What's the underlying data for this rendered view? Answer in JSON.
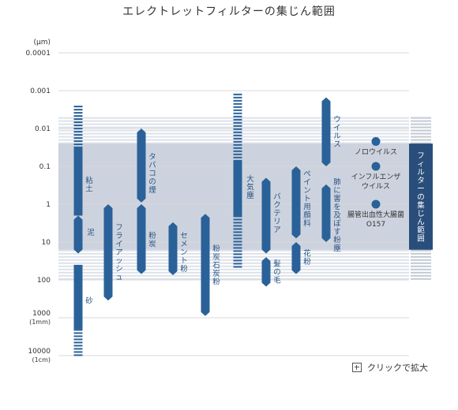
{
  "title": "エレクトレットフィルターの集じん範囲",
  "zoom_label": "クリックで拡大",
  "colors": {
    "bar": "#2a6199",
    "band": "#cdd3de",
    "stripe": "#dde2ea",
    "grid": "#d8d8d8",
    "filter_box": "#2a4e7c",
    "text_blue": "#2a5585"
  },
  "chart_data": {
    "type": "range-bar",
    "y_scale": "log",
    "y_unit": "(μm)",
    "y_range": [
      0.0001,
      10000
    ],
    "y_reversed": true,
    "y_ticks": [
      {
        "value": 0.0001,
        "label": "0.0001"
      },
      {
        "value": 0.001,
        "label": "0.001"
      },
      {
        "value": 0.01,
        "label": "0.01"
      },
      {
        "value": 0.1,
        "label": "0.1"
      },
      {
        "value": 1,
        "label": "1"
      },
      {
        "value": 10,
        "label": "10"
      },
      {
        "value": 100,
        "label": "100"
      },
      {
        "value": 1000,
        "label": "1000",
        "sublabel": "(1mm)"
      },
      {
        "value": 10000,
        "label": "10000",
        "sublabel": "(1cm)"
      }
    ],
    "filter_range": {
      "label": "フィルターの集じん範囲",
      "solid": [
        0.025,
        16
      ],
      "striped": [
        0.005,
        100
      ]
    },
    "bars": [
      {
        "name": "粘土",
        "from": 0.03,
        "to": 2,
        "stripe_from": 0.0025,
        "stripe_to": 0.03,
        "label_at": 0.3
      },
      {
        "name": "泥",
        "from": 2,
        "to": 20,
        "label_at": 5.5
      },
      {
        "name": "砂",
        "from": 40,
        "to": 2000,
        "stripe_to": 10000,
        "label_at": 350
      },
      {
        "name": "フライアッシュ",
        "from": 1,
        "to": 350,
        "label_at": 18
      },
      {
        "name": "タバコの煙",
        "from": 0.01,
        "to": 0.9,
        "label_at": 0.15
      },
      {
        "name": "粉炭",
        "from": 1,
        "to": 70,
        "label_at": 8.5
      },
      {
        "name": "セメント粉",
        "from": 3,
        "to": 75,
        "label_at": 18
      },
      {
        "name": "粉炭石炭粉",
        "from": 1.8,
        "to": 900,
        "label_at": 40
      },
      {
        "name": "大気塵",
        "from": 0.07,
        "to": 2,
        "stripe_from": 0.0012,
        "stripe_to": 0.07,
        "stripe_to2": 50,
        "label_at": 0.35
      },
      {
        "name": "バクテリア",
        "from": 0.2,
        "to": 20,
        "label_at": 1.7
      },
      {
        "name": "髪の毛",
        "from": 25,
        "to": 150,
        "label_at": 60
      },
      {
        "name": "ペイント用顔料",
        "from": 0.1,
        "to": 8,
        "label_at": 0.7
      },
      {
        "name": "花粉",
        "from": 10,
        "to": 70,
        "label_at": 25
      },
      {
        "name": "ウイルス",
        "from": 0.0015,
        "to": 0.1,
        "label_at": 0.012
      },
      {
        "name": "肺に害を及ぼす粉塵",
        "from": 0.3,
        "to": 10,
        "label_at": 1.9
      }
    ],
    "points": [
      {
        "name": "ノロウイルス",
        "value": 0.022
      },
      {
        "name": "インフルエンザ\nウイルス",
        "value": 0.1
      },
      {
        "name": "腸管出血性大腸菌\nO157",
        "value": 1
      }
    ]
  }
}
